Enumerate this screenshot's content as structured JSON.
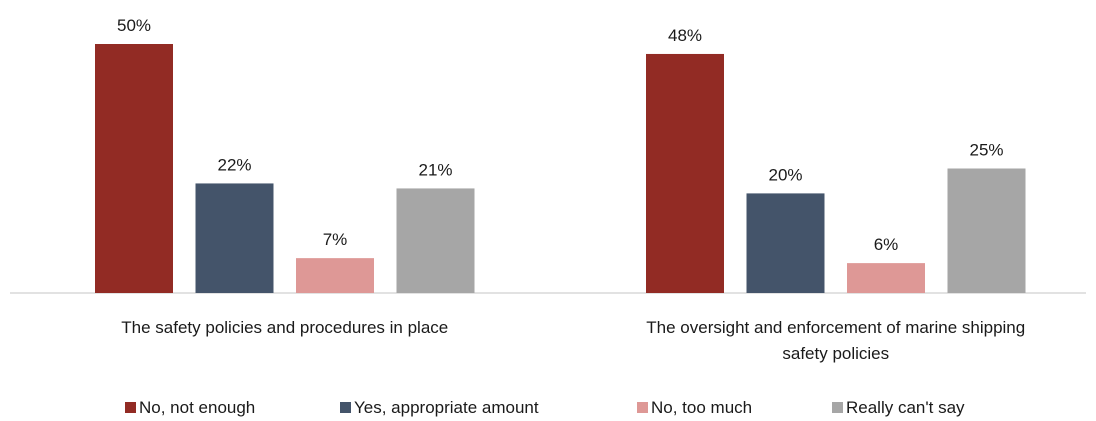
{
  "chart_data": {
    "type": "bar",
    "categories": [
      [
        "The safety policies and procedures in place"
      ],
      [
        "The oversight and enforcement of marine shipping",
        "safety policies"
      ]
    ],
    "series": [
      {
        "name": "No, not enough",
        "values": [
          50,
          48
        ],
        "labels": [
          "50%",
          "48%"
        ],
        "color": "#922b24"
      },
      {
        "name": "Yes, appropriate amount",
        "values": [
          22,
          20
        ],
        "labels": [
          "22%",
          "20%"
        ],
        "color": "#44546a"
      },
      {
        "name": "No, too much",
        "values": [
          7,
          6
        ],
        "labels": [
          "7%",
          "6%"
        ],
        "color": "#de9896"
      },
      {
        "name": "Really can't say",
        "values": [
          21,
          25
        ],
        "labels": [
          "21%",
          "25%"
        ],
        "color": "#a6a6a6"
      }
    ],
    "ylim": [
      0,
      55
    ],
    "grid": false,
    "legend": "bottom",
    "axis_color": "#d9d9d9"
  }
}
